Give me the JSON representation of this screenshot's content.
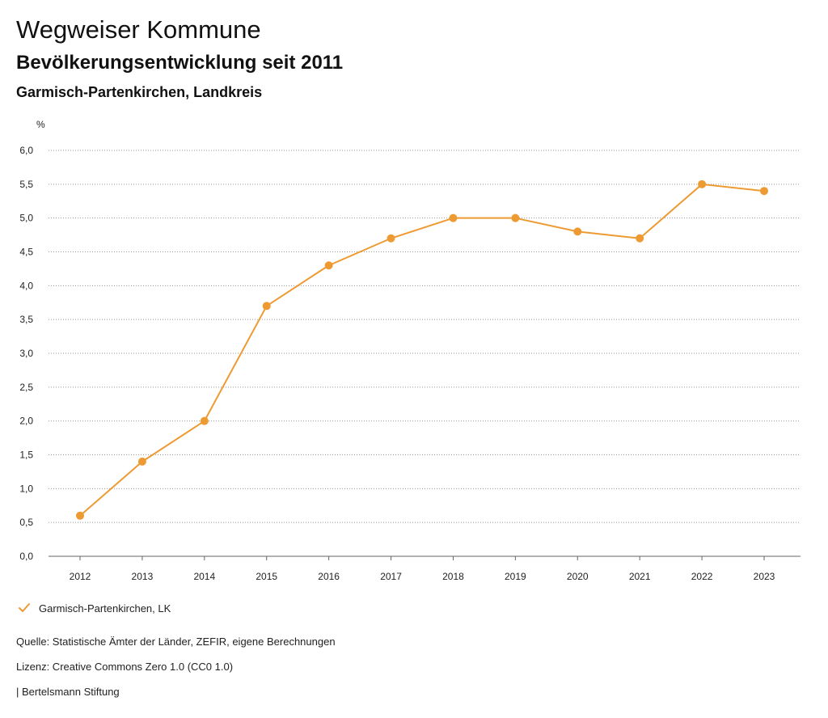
{
  "header": {
    "title": "Wegweiser Kommune",
    "subtitle": "Bevölkerungsentwicklung seit 2011",
    "region": "Garmisch-Partenkirchen, Landkreis"
  },
  "chart_data": {
    "type": "line",
    "ylabel": "%",
    "ylim": [
      0,
      6
    ],
    "yticks": [
      "0,0",
      "0,5",
      "1,0",
      "1,5",
      "2,0",
      "2,5",
      "3,0",
      "3,5",
      "4,0",
      "4,5",
      "5,0",
      "5,5",
      "6,0"
    ],
    "ytick_values": [
      0,
      0.5,
      1,
      1.5,
      2,
      2.5,
      3,
      3.5,
      4,
      4.5,
      5,
      5.5,
      6
    ],
    "grid": true,
    "categories": [
      "2012",
      "2013",
      "2014",
      "2015",
      "2016",
      "2017",
      "2018",
      "2019",
      "2020",
      "2021",
      "2022",
      "2023"
    ],
    "series": [
      {
        "name": "Garmisch-Partenkirchen, LK",
        "color": "#EE9A32",
        "values": [
          0.6,
          1.4,
          2.0,
          3.7,
          4.3,
          4.7,
          5.0,
          5.0,
          4.8,
          4.7,
          5.5,
          5.4
        ]
      }
    ],
    "legend_position": "bottom-left"
  },
  "footer": {
    "source": "Quelle: Statistische Ämter der Länder, ZEFIR, eigene Berechnungen",
    "license": "Lizenz: Creative Commons Zero 1.0 (CC0 1.0)",
    "brand": "| Bertelsmann Stiftung"
  }
}
